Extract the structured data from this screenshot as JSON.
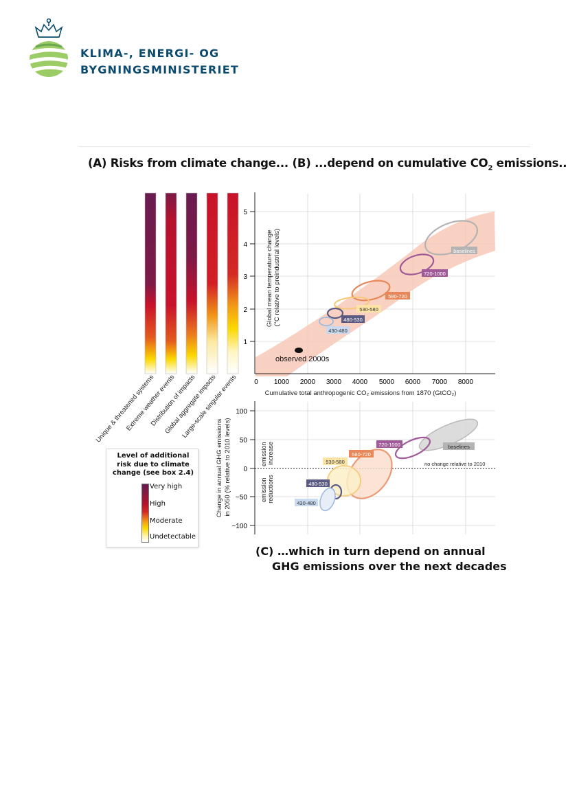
{
  "ministry": {
    "line1": "KLIMA-, ENERGI- OG",
    "line2": "BYGNINGSMINISTERIET"
  },
  "headline": {
    "part1": "(A) Risks from climate change...  (B) ...depend on cumulative CO",
    "sub": "2",
    "part2": " emissions..."
  },
  "panel_a": {
    "bars": [
      "Unique & threatened systems",
      "Extreme weather events",
      "Distribution of impacts",
      "Global aggregate impacts",
      "Large-scale singular events"
    ],
    "legend": {
      "title_lines": [
        "Level of additional",
        "risk due to climate",
        "change (see box 2.4)"
      ],
      "levels": [
        "Very high",
        "High",
        "Moderate",
        "Undetectable"
      ]
    }
  },
  "panel_b": {
    "ylabel_lines": [
      "Global mean temperature change",
      "(°C relative to preindustrial levels)"
    ],
    "yticks": [
      "1",
      "2",
      "3",
      "4",
      "5"
    ],
    "xticks": [
      "0",
      "1000",
      "2000",
      "3000",
      "4000",
      "5000",
      "6000",
      "7000",
      "8000"
    ],
    "xlabel": "Cumulative total anthropogenic CO₂ emissions from 1870 (GtCO₂)",
    "observed_label": "observed 2000s",
    "labels": [
      "baselines",
      "720-1000",
      "580-720",
      "530-580",
      "480-530",
      "430-480"
    ]
  },
  "panel_c": {
    "ylabel_lines": [
      "Change in annual GHG emissions",
      "in 2050 (% relative to 2010 levels)"
    ],
    "yticks": [
      "100",
      "50",
      "0",
      "−50",
      "−100"
    ],
    "increase_lines": [
      "emission",
      "increase"
    ],
    "reduction_lines": [
      "emission",
      "reductions"
    ],
    "no_change": "no change relative to 2010",
    "labels": [
      "baselines",
      "720-1000",
      "580-720",
      "530-580",
      "480-530",
      "430-480"
    ]
  },
  "caption_c": {
    "line1": "(C) …which in turn depend on annual",
    "line2": "GHG emissions over the next decades"
  },
  "colors": {
    "brand_blue": "#0b4a6f",
    "green": "#6aa84f",
    "baselines": "#b3b3b3",
    "s720_1000": "#a05a97",
    "s580_720": "#e8885a",
    "s530_580": "#f5c873",
    "s480_530": "#5b5a82",
    "s430_480": "#9ebae1",
    "uncertainty": "#f7c9b9"
  },
  "chart_data": [
    {
      "type": "scatter",
      "title": "(B) ...depend on cumulative CO2 emissions...",
      "xlabel": "Cumulative total anthropogenic CO2 emissions from 1870 (GtCO2)",
      "ylabel": "Global mean temperature change (°C relative to preindustrial levels)",
      "xlim": [
        0,
        9000
      ],
      "ylim": [
        0,
        5.5
      ],
      "grid": true,
      "series": [
        {
          "name": "observed 2000s",
          "x": [
            1650
          ],
          "y": [
            0.75
          ]
        },
        {
          "name": "430-480",
          "x": [
            2700
          ],
          "y": [
            1.6
          ]
        },
        {
          "name": "480-530",
          "x": [
            3050
          ],
          "y": [
            1.85
          ]
        },
        {
          "name": "530-580",
          "x": [
            3800
          ],
          "y": [
            2.15
          ]
        },
        {
          "name": "580-720",
          "x": [
            4450
          ],
          "y": [
            2.5
          ]
        },
        {
          "name": "720-1000",
          "x": [
            5800
          ],
          "y": [
            3.35
          ]
        },
        {
          "name": "baselines",
          "x": [
            7100
          ],
          "y": [
            4.2
          ]
        }
      ]
    },
    {
      "type": "scatter",
      "title": "(C) ...which in turn depend on annual GHG emissions over the next decades",
      "xlabel": "",
      "ylabel": "Change in annual GHG emissions in 2050 (% relative to 2010 levels)",
      "ylim": [
        -110,
        115
      ],
      "grid": true,
      "series": [
        {
          "name": "430-480",
          "x": [
            2650
          ],
          "y": [
            -55
          ]
        },
        {
          "name": "480-530",
          "x": [
            3050
          ],
          "y": [
            -40
          ]
        },
        {
          "name": "530-580",
          "x": [
            3600
          ],
          "y": [
            -15
          ]
        },
        {
          "name": "580-720",
          "x": [
            4450
          ],
          "y": [
            -10
          ]
        },
        {
          "name": "720-1000",
          "x": [
            6000
          ],
          "y": [
            40
          ]
        },
        {
          "name": "baselines",
          "x": [
            7300
          ],
          "y": [
            65
          ]
        }
      ]
    }
  ]
}
